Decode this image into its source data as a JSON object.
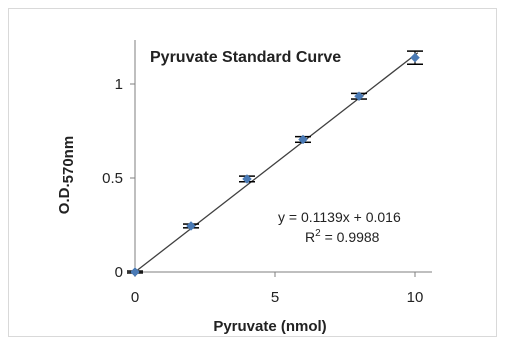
{
  "chart_data": {
    "type": "scatter",
    "title": "Pyruvate Standard Curve",
    "xlabel": "Pyruvate (nmol)",
    "ylabel_main": "O.D.",
    "ylabel_sub": "570nm",
    "xlim": [
      0,
      10
    ],
    "ylim": [
      0,
      1.0
    ],
    "x_ticks": [
      0,
      5,
      10
    ],
    "y_ticks": [
      0,
      0.5,
      1
    ],
    "grid": false,
    "marker_color": "#4a7ab5",
    "line_color": "#404040",
    "series": [
      {
        "x": [
          0,
          2,
          4,
          6,
          8,
          10
        ],
        "y": [
          0.0,
          0.245,
          0.495,
          0.705,
          0.935,
          1.14
        ],
        "error": [
          0.005,
          0.01,
          0.015,
          0.015,
          0.015,
          0.035
        ]
      }
    ],
    "trendline": {
      "slope": 0.1139,
      "intercept": 0.016,
      "equation": "y = 0.1139x + 0.016",
      "r2_label": "R",
      "r2_value": " = 0.9988"
    }
  }
}
